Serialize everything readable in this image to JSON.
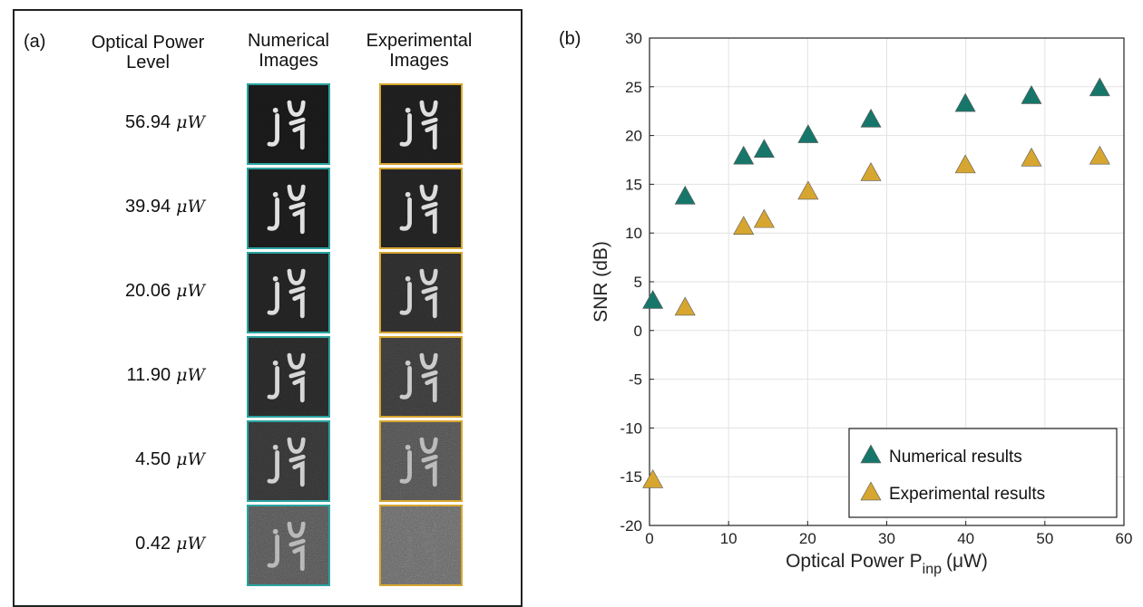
{
  "panel_a": {
    "label": "(a)",
    "headers": {
      "power": [
        "Optical Power",
        "Level"
      ],
      "numerical": [
        "Numerical",
        "Images"
      ],
      "experimental": [
        "Experimental",
        "Images"
      ]
    },
    "rows": [
      {
        "value": "56.94",
        "unit": "μW"
      },
      {
        "value": "39.94",
        "unit": "μW"
      },
      {
        "value": "20.06",
        "unit": "μW"
      },
      {
        "value": "11.90",
        "unit": "μW"
      },
      {
        "value": "4.50",
        "unit": "μW"
      },
      {
        "value": "0.42",
        "unit": "μW"
      }
    ],
    "colors": {
      "numerical_border": "#2aa3a0",
      "experimental_border": "#d7a630"
    }
  },
  "chart_data": {
    "type": "scatter",
    "panel_label": "(b)",
    "xlabel": "Optical Power P",
    "xlabel_sub": "inp",
    "xlabel_unit": "(μW)",
    "ylabel": "SNR (dB)",
    "xlim": [
      0,
      60
    ],
    "ylim": [
      -20,
      30
    ],
    "xticks": [
      0,
      10,
      20,
      30,
      40,
      50,
      60
    ],
    "yticks": [
      -20,
      -15,
      -10,
      -5,
      0,
      5,
      10,
      15,
      20,
      25,
      30
    ],
    "grid": true,
    "legend_position": "bottom-right",
    "marker": "triangle",
    "series": [
      {
        "name": "Numerical results",
        "color": "#17766a",
        "points": [
          [
            0.42,
            3.0
          ],
          [
            4.5,
            13.7
          ],
          [
            11.9,
            17.8
          ],
          [
            14.5,
            18.5
          ],
          [
            20.06,
            20.0
          ],
          [
            28.0,
            21.6
          ],
          [
            39.94,
            23.2
          ],
          [
            48.3,
            24.0
          ],
          [
            56.94,
            24.8
          ]
        ]
      },
      {
        "name": "Experimental results",
        "color": "#d7a630",
        "points": [
          [
            0.42,
            -15.4
          ],
          [
            4.5,
            2.3
          ],
          [
            11.9,
            10.6
          ],
          [
            14.5,
            11.3
          ],
          [
            20.06,
            14.2
          ],
          [
            28.0,
            16.1
          ],
          [
            39.94,
            16.9
          ],
          [
            48.3,
            17.6
          ],
          [
            56.94,
            17.8
          ]
        ]
      }
    ]
  }
}
